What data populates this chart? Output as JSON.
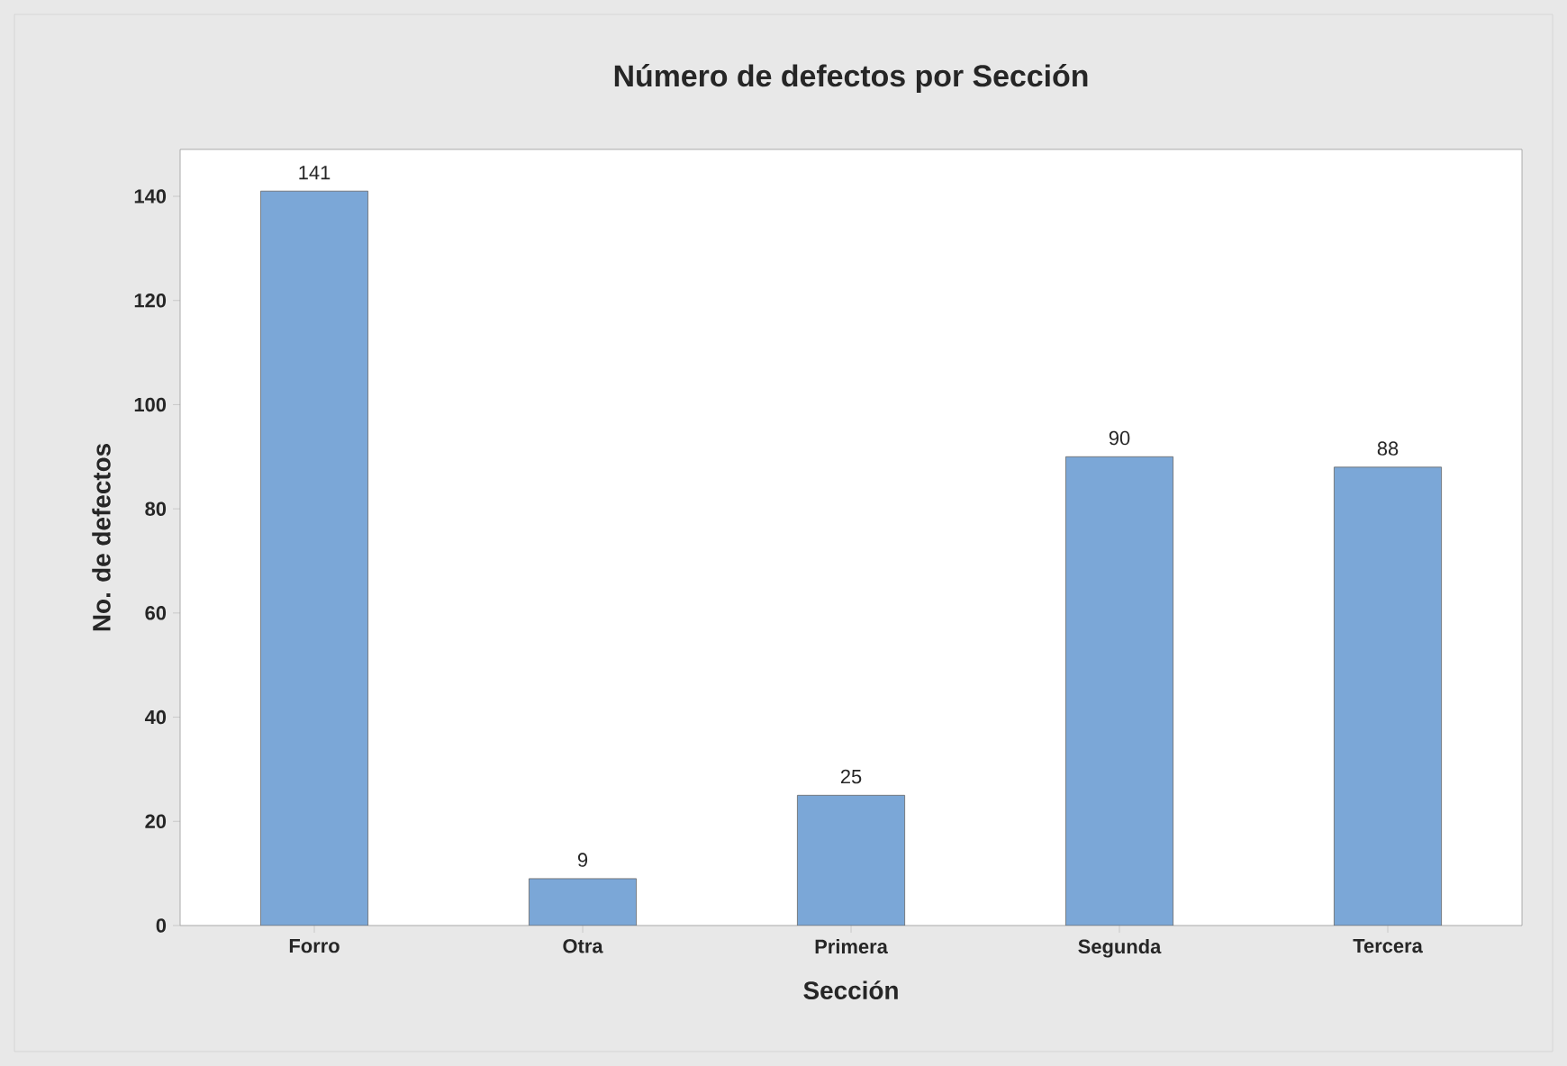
{
  "chart_data": {
    "type": "bar",
    "title": "Número de defectos por Sección",
    "xlabel": "Sección",
    "ylabel": "No. de defectos",
    "categories": [
      "Forro",
      "Otra",
      "Primera",
      "Segunda",
      "Tercera"
    ],
    "values": [
      141,
      9,
      25,
      90,
      88
    ],
    "color": "#7ba7d7",
    "ylim": [
      0,
      149
    ],
    "yticks": [
      0,
      20,
      40,
      60,
      80,
      100,
      120,
      140
    ],
    "data_labels": true
  }
}
